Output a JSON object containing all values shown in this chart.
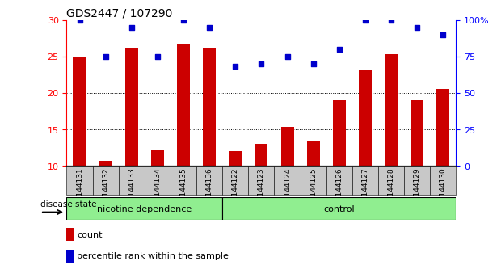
{
  "title": "GDS2447 / 107290",
  "categories": [
    "GSM144131",
    "GSM144132",
    "GSM144133",
    "GSM144134",
    "GSM144135",
    "GSM144136",
    "GSM144122",
    "GSM144123",
    "GSM144124",
    "GSM144125",
    "GSM144126",
    "GSM144127",
    "GSM144128",
    "GSM144129",
    "GSM144130"
  ],
  "bar_values": [
    25.0,
    10.7,
    26.2,
    12.2,
    26.7,
    26.1,
    12.0,
    13.0,
    15.3,
    13.5,
    19.0,
    23.2,
    25.3,
    19.0,
    20.5
  ],
  "dot_pct": [
    100,
    75,
    95,
    75,
    100,
    95,
    68,
    70,
    75,
    70,
    80,
    100,
    100,
    95,
    90
  ],
  "group_separator": 6,
  "ylim_left": [
    10,
    30
  ],
  "ylim_right": [
    0,
    100
  ],
  "yticks_left": [
    10,
    15,
    20,
    25,
    30
  ],
  "yticks_right": [
    0,
    25,
    50,
    75,
    100
  ],
  "bar_color": "#CC0000",
  "dot_color": "#0000CC",
  "plot_bg": "#FFFFFF",
  "tick_bg": "#C8C8C8",
  "legend_count_color": "#CC0000",
  "legend_pct_color": "#0000CC",
  "disease_state_label": "disease state",
  "group_label_1": "nicotine dependence",
  "group_label_2": "control",
  "group_color": "#90EE90"
}
